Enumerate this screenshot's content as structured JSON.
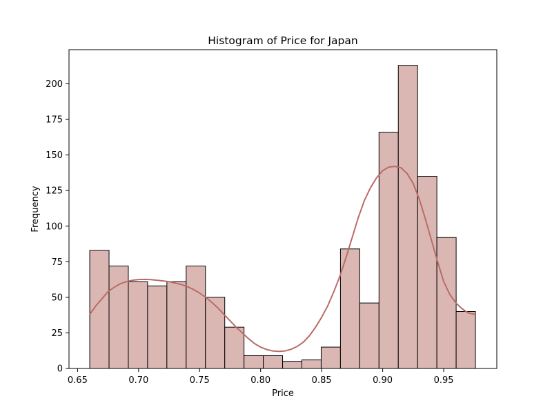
{
  "chart_data": {
    "type": "bar",
    "title": "Histogram of Price for Japan",
    "xlabel": "Price",
    "ylabel": "Frequency",
    "xlim": [
      0.643,
      0.9935
    ],
    "ylim": [
      0,
      224
    ],
    "x_ticks": [
      0.65,
      0.7,
      0.75,
      0.8,
      0.85,
      0.9,
      0.95
    ],
    "x_tick_labels": [
      "0.65",
      "0.70",
      "0.75",
      "0.80",
      "0.85",
      "0.90",
      "0.95"
    ],
    "y_ticks": [
      0,
      25,
      50,
      75,
      100,
      125,
      150,
      175,
      200
    ],
    "y_tick_labels": [
      "0",
      "25",
      "50",
      "75",
      "100",
      "125",
      "150",
      "175",
      "200"
    ],
    "bin_edges": [
      0.66,
      0.6758,
      0.6916,
      0.7074,
      0.7232,
      0.739,
      0.7548,
      0.7706,
      0.7864,
      0.8022,
      0.818,
      0.8338,
      0.8496,
      0.8654,
      0.8812,
      0.897,
      0.9128,
      0.9286,
      0.9444,
      0.9602,
      0.976
    ],
    "values": [
      83,
      72,
      61,
      58,
      61,
      72,
      50,
      29,
      9,
      9,
      5,
      6,
      15,
      84,
      46,
      166,
      213,
      135,
      92,
      40
    ],
    "kde": {
      "x": [
        0.66,
        0.665,
        0.67,
        0.675,
        0.68,
        0.685,
        0.69,
        0.695,
        0.7,
        0.705,
        0.71,
        0.715,
        0.72,
        0.725,
        0.73,
        0.735,
        0.74,
        0.745,
        0.75,
        0.755,
        0.76,
        0.765,
        0.77,
        0.775,
        0.78,
        0.785,
        0.79,
        0.795,
        0.8,
        0.805,
        0.81,
        0.815,
        0.82,
        0.825,
        0.83,
        0.835,
        0.84,
        0.845,
        0.85,
        0.855,
        0.86,
        0.865,
        0.87,
        0.875,
        0.88,
        0.885,
        0.89,
        0.895,
        0.9,
        0.905,
        0.91,
        0.915,
        0.92,
        0.925,
        0.93,
        0.935,
        0.94,
        0.945,
        0.95,
        0.955,
        0.96,
        0.965,
        0.97,
        0.976
      ],
      "y": [
        38,
        44,
        49,
        54,
        57,
        59.5,
        61,
        62,
        62.5,
        62.6,
        62.4,
        62,
        61.5,
        61,
        60,
        59,
        57.5,
        55.5,
        53,
        50,
        46.5,
        42.5,
        38,
        33.5,
        29,
        25,
        21,
        17.5,
        15,
        13.3,
        12.3,
        12,
        12.3,
        13.5,
        15.5,
        18.5,
        23,
        29,
        36,
        44,
        54,
        65,
        78,
        92,
        106,
        118,
        127,
        134,
        139,
        141.5,
        142,
        141,
        137,
        130,
        119,
        105,
        90,
        75,
        61,
        52,
        46,
        42,
        39,
        38
      ]
    },
    "bar_color": "#dbb7b4",
    "bar_edge_color": "#000000",
    "kde_color": "#b96b66",
    "grid": false
  }
}
